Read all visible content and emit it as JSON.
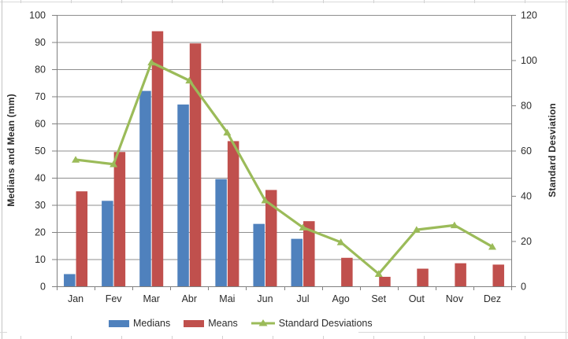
{
  "chart_data": {
    "type": "bar+line",
    "categories": [
      "Jan",
      "Fev",
      "Mar",
      "Abr",
      "Mai",
      "Jun",
      "Jul",
      "Ago",
      "Set",
      "Out",
      "Nov",
      "Dez"
    ],
    "series": [
      {
        "name": "Medians",
        "type": "bar",
        "axis": "left",
        "color": "#4F81BD",
        "values": [
          4.5,
          31.5,
          72,
          67,
          39.5,
          23,
          17.5,
          0,
          0,
          0,
          0,
          0
        ]
      },
      {
        "name": "Means",
        "type": "bar",
        "axis": "left",
        "color": "#C0504D",
        "values": [
          35,
          49.5,
          94,
          89.5,
          53.5,
          35.5,
          24,
          10.5,
          3.5,
          6.5,
          8.5,
          8
        ]
      },
      {
        "name": "Standard Desviations",
        "type": "line",
        "axis": "right",
        "color": "#9BBB59",
        "marker": "triangle",
        "values": [
          56,
          54,
          99,
          91,
          68,
          38,
          26,
          19.5,
          5.5,
          25,
          27,
          17.5
        ]
      }
    ],
    "left_axis": {
      "title": "Medians and Mean (mm)",
      "min": 0,
      "max": 100,
      "step": 10,
      "tick_labels": [
        "0",
        "10",
        "20",
        "30",
        "40",
        "50",
        "60",
        "70",
        "80",
        "90",
        "100"
      ]
    },
    "right_axis": {
      "title": "Standard Desviation",
      "min": 0,
      "max": 120,
      "step": 20,
      "tick_labels": [
        "0",
        "20",
        "40",
        "60",
        "80",
        "100",
        "120"
      ]
    },
    "grid": true,
    "legend_position": "bottom",
    "colors": {
      "grid": "#8e8e8e",
      "axis": "#808080",
      "text": "#2b2b2b"
    }
  },
  "legend": {
    "items": [
      {
        "label": "Medians",
        "color": "#4F81BD",
        "type": "bar"
      },
      {
        "label": "Means",
        "color": "#C0504D",
        "type": "bar"
      },
      {
        "label": "Standard Desviations",
        "color": "#9BBB59",
        "type": "line"
      }
    ]
  }
}
